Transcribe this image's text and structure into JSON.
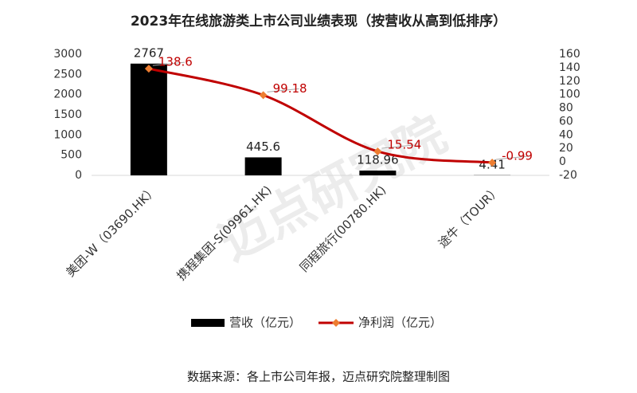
{
  "chart_data": {
    "type": "bar-line",
    "title": "2023年在线旅游类上市公司业绩表现（按营收从高到低排序）",
    "categories": [
      "美团-W（03690.HK）",
      "携程集团-S(09961.HK)",
      "同程旅行(00780.HK)",
      "途牛（TOUR）"
    ],
    "series": [
      {
        "name": "营收（亿元）",
        "type": "bar",
        "color": "#000000",
        "values": [
          2767,
          445.6,
          118.96,
          4.41
        ]
      },
      {
        "name": "净利润（亿元）",
        "type": "line",
        "axis": "y2",
        "color": "#c00000",
        "marker_color": "#ed7d31",
        "values": [
          138.6,
          99.18,
          15.54,
          -0.99
        ]
      }
    ],
    "ylim": [
      0,
      3000
    ],
    "yticks": [
      0,
      500,
      1000,
      1500,
      2000,
      2500,
      3000
    ],
    "y2lim": [
      -20,
      160
    ],
    "y2ticks": [
      -20,
      0,
      20,
      40,
      60,
      80,
      100,
      120,
      140,
      160
    ],
    "legend": "bottom",
    "watermark": "迈点研究院",
    "source": "数据来源：各上市公司年报，迈点研究院整理制图"
  }
}
